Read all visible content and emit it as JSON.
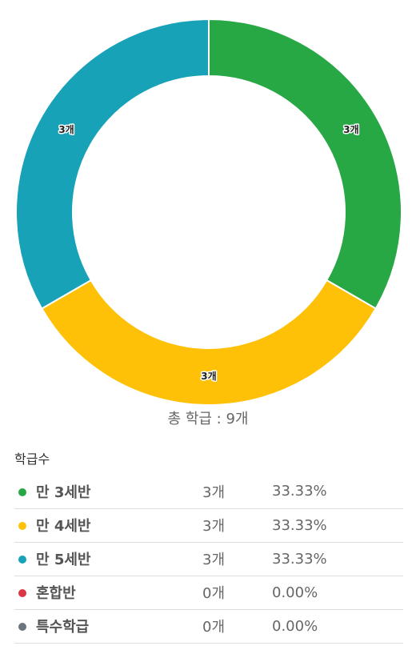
{
  "chart_data": {
    "type": "pie",
    "slices": [
      {
        "label": "만 3세반",
        "value": 3,
        "display": "3개",
        "color": "#28a745"
      },
      {
        "label": "만 4세반",
        "value": 3,
        "display": "3개",
        "color": "#ffc107"
      },
      {
        "label": "만 5세반",
        "value": 3,
        "display": "3개",
        "color": "#17a2b8"
      }
    ],
    "donut": true,
    "total_label": "총 학급 : 9개"
  },
  "section_title": "학급수",
  "legend": [
    {
      "name": "만 3세반",
      "count": "3개",
      "percent": "33.33%",
      "color": "#28a745"
    },
    {
      "name": "만 4세반",
      "count": "3개",
      "percent": "33.33%",
      "color": "#ffc107"
    },
    {
      "name": "만 5세반",
      "count": "3개",
      "percent": "33.33%",
      "color": "#17a2b8"
    },
    {
      "name": "혼합반",
      "count": "0개",
      "percent": "0.00%",
      "color": "#dc3545"
    },
    {
      "name": "특수학급",
      "count": "0개",
      "percent": "0.00%",
      "color": "#6c757d"
    }
  ]
}
